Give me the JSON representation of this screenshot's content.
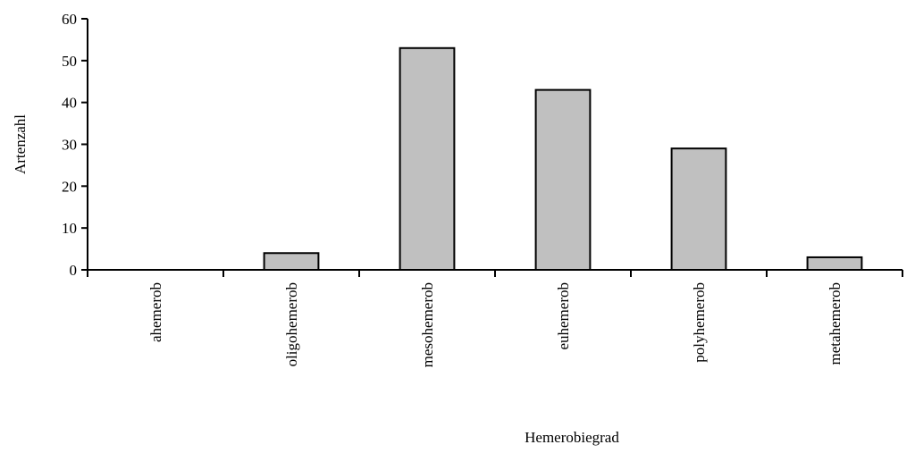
{
  "chart_data": {
    "type": "bar",
    "categories": [
      "ahemerob",
      "oligohemerob",
      "mesohemerob",
      "euhemerob",
      "polyhemerob",
      "metahemerob"
    ],
    "values": [
      0,
      4,
      53,
      43,
      29,
      3
    ],
    "title": "",
    "xlabel": "Hemerobiegrad",
    "ylabel": "Artenzahl",
    "ylim": [
      0,
      60
    ],
    "yticks": [
      0,
      10,
      20,
      30,
      40,
      50,
      60
    ],
    "grid": false,
    "legend": "none",
    "bar_color": "#c0c0c0",
    "bar_edge_color": "#000000"
  }
}
